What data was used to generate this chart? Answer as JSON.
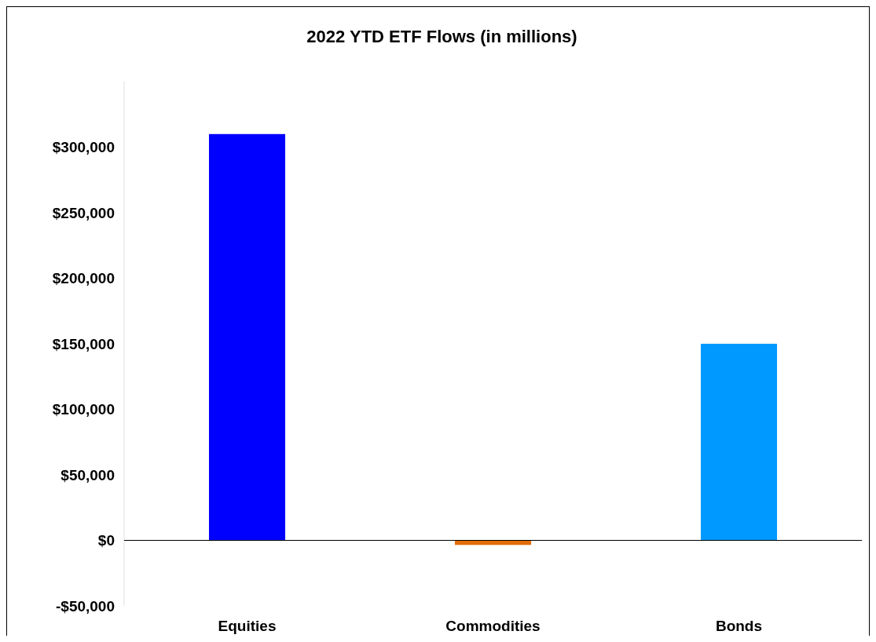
{
  "chart_data": {
    "type": "bar",
    "title": "2022 YTD ETF Flows (in millions)",
    "categories": [
      "Equities",
      "Commodities",
      "Bonds"
    ],
    "values": [
      310000,
      -3500,
      150000
    ],
    "colors": [
      "#0000ff",
      "#e36c09",
      "#0099ff"
    ],
    "ylim": [
      -50000,
      350000
    ],
    "yticks": [
      {
        "value": -50000,
        "label": "-$50,000"
      },
      {
        "value": 0,
        "label": "$0"
      },
      {
        "value": 50000,
        "label": "$50,000"
      },
      {
        "value": 100000,
        "label": "$100,000"
      },
      {
        "value": 150000,
        "label": "$150,000"
      },
      {
        "value": 200000,
        "label": "$200,000"
      },
      {
        "value": 250000,
        "label": "$250,000"
      },
      {
        "value": 300000,
        "label": "$300,000"
      }
    ]
  }
}
